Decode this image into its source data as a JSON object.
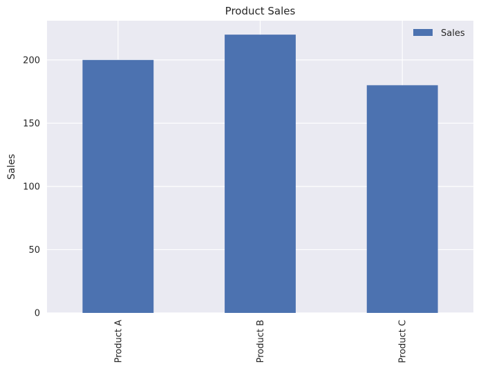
{
  "chart_data": {
    "type": "bar",
    "title": "Product Sales",
    "xlabel": "",
    "ylabel": "Sales",
    "categories": [
      "Product A",
      "Product B",
      "Product C"
    ],
    "series": [
      {
        "name": "Sales",
        "values": [
          200,
          220,
          180
        ],
        "color": "#4c72b0"
      }
    ],
    "ylim": [
      0,
      231
    ],
    "yticks": [
      0,
      50,
      100,
      150,
      200
    ],
    "grid": true,
    "legend_position": "top-right",
    "x_tick_rotation": "vertical",
    "background_color": "#eaeaf2",
    "grid_color": "#ffffff"
  }
}
